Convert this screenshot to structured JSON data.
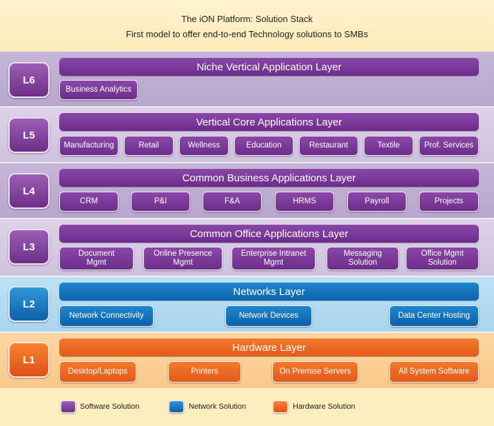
{
  "header": {
    "title": "The iON Platform: Solution Stack",
    "subtitle": "First model to offer end-to-end Technology solutions to SMBs"
  },
  "layers": {
    "l6": {
      "badge": "L6",
      "title": "Niche Vertical Application Layer",
      "items": [
        "Business Analytics"
      ]
    },
    "l5": {
      "badge": "L5",
      "title": "Vertical Core Applications Layer",
      "items": [
        "Manufacturing",
        "Retail",
        "Wellness",
        "Education",
        "Restaurant",
        "Textile",
        "Prof. Services"
      ]
    },
    "l4": {
      "badge": "L4",
      "title": "Common Business Applications Layer",
      "items": [
        "CRM",
        "P&I",
        "F&A",
        "HRMS",
        "Payroll",
        "Projects"
      ]
    },
    "l3": {
      "badge": "L3",
      "title": "Common Office Applications Layer",
      "items": [
        "Document\nMgmt",
        "Online Presence\nMgmt",
        "Enterprise Intranet\nMgmt",
        "Messaging\nSolution",
        "Office Mgmt\nSolution"
      ]
    },
    "l2": {
      "badge": "L2",
      "title": "Networks Layer",
      "items": [
        "Network Connectivity",
        "Network Devices",
        "Data Center Hosting"
      ]
    },
    "l1": {
      "badge": "L1",
      "title": "Hardware Layer",
      "items": [
        "Desktop/Laptops",
        "Printers",
        "On Premise Servers",
        "All System Software"
      ]
    }
  },
  "legend": {
    "software": "Software  Solution",
    "network": "Network Solution",
    "hardware": "Hardware Solution"
  },
  "colors": {
    "software": "#7a3596",
    "network": "#1478c0",
    "hardware": "#ec6a24"
  }
}
